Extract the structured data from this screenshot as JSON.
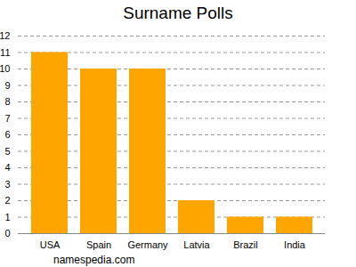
{
  "chart_data": {
    "type": "bar",
    "title": "Surname Polls",
    "categories": [
      "USA",
      "Spain",
      "Germany",
      "Latvia",
      "Brazil",
      "India"
    ],
    "values": [
      11,
      10,
      10,
      2,
      1,
      1
    ],
    "color": "#ffa500",
    "ylim": [
      0,
      12
    ],
    "yticks": [
      0,
      1,
      2,
      3,
      4,
      5,
      6,
      7,
      8,
      9,
      10,
      11,
      12
    ],
    "grid": true,
    "caption": "namespedia.com"
  }
}
